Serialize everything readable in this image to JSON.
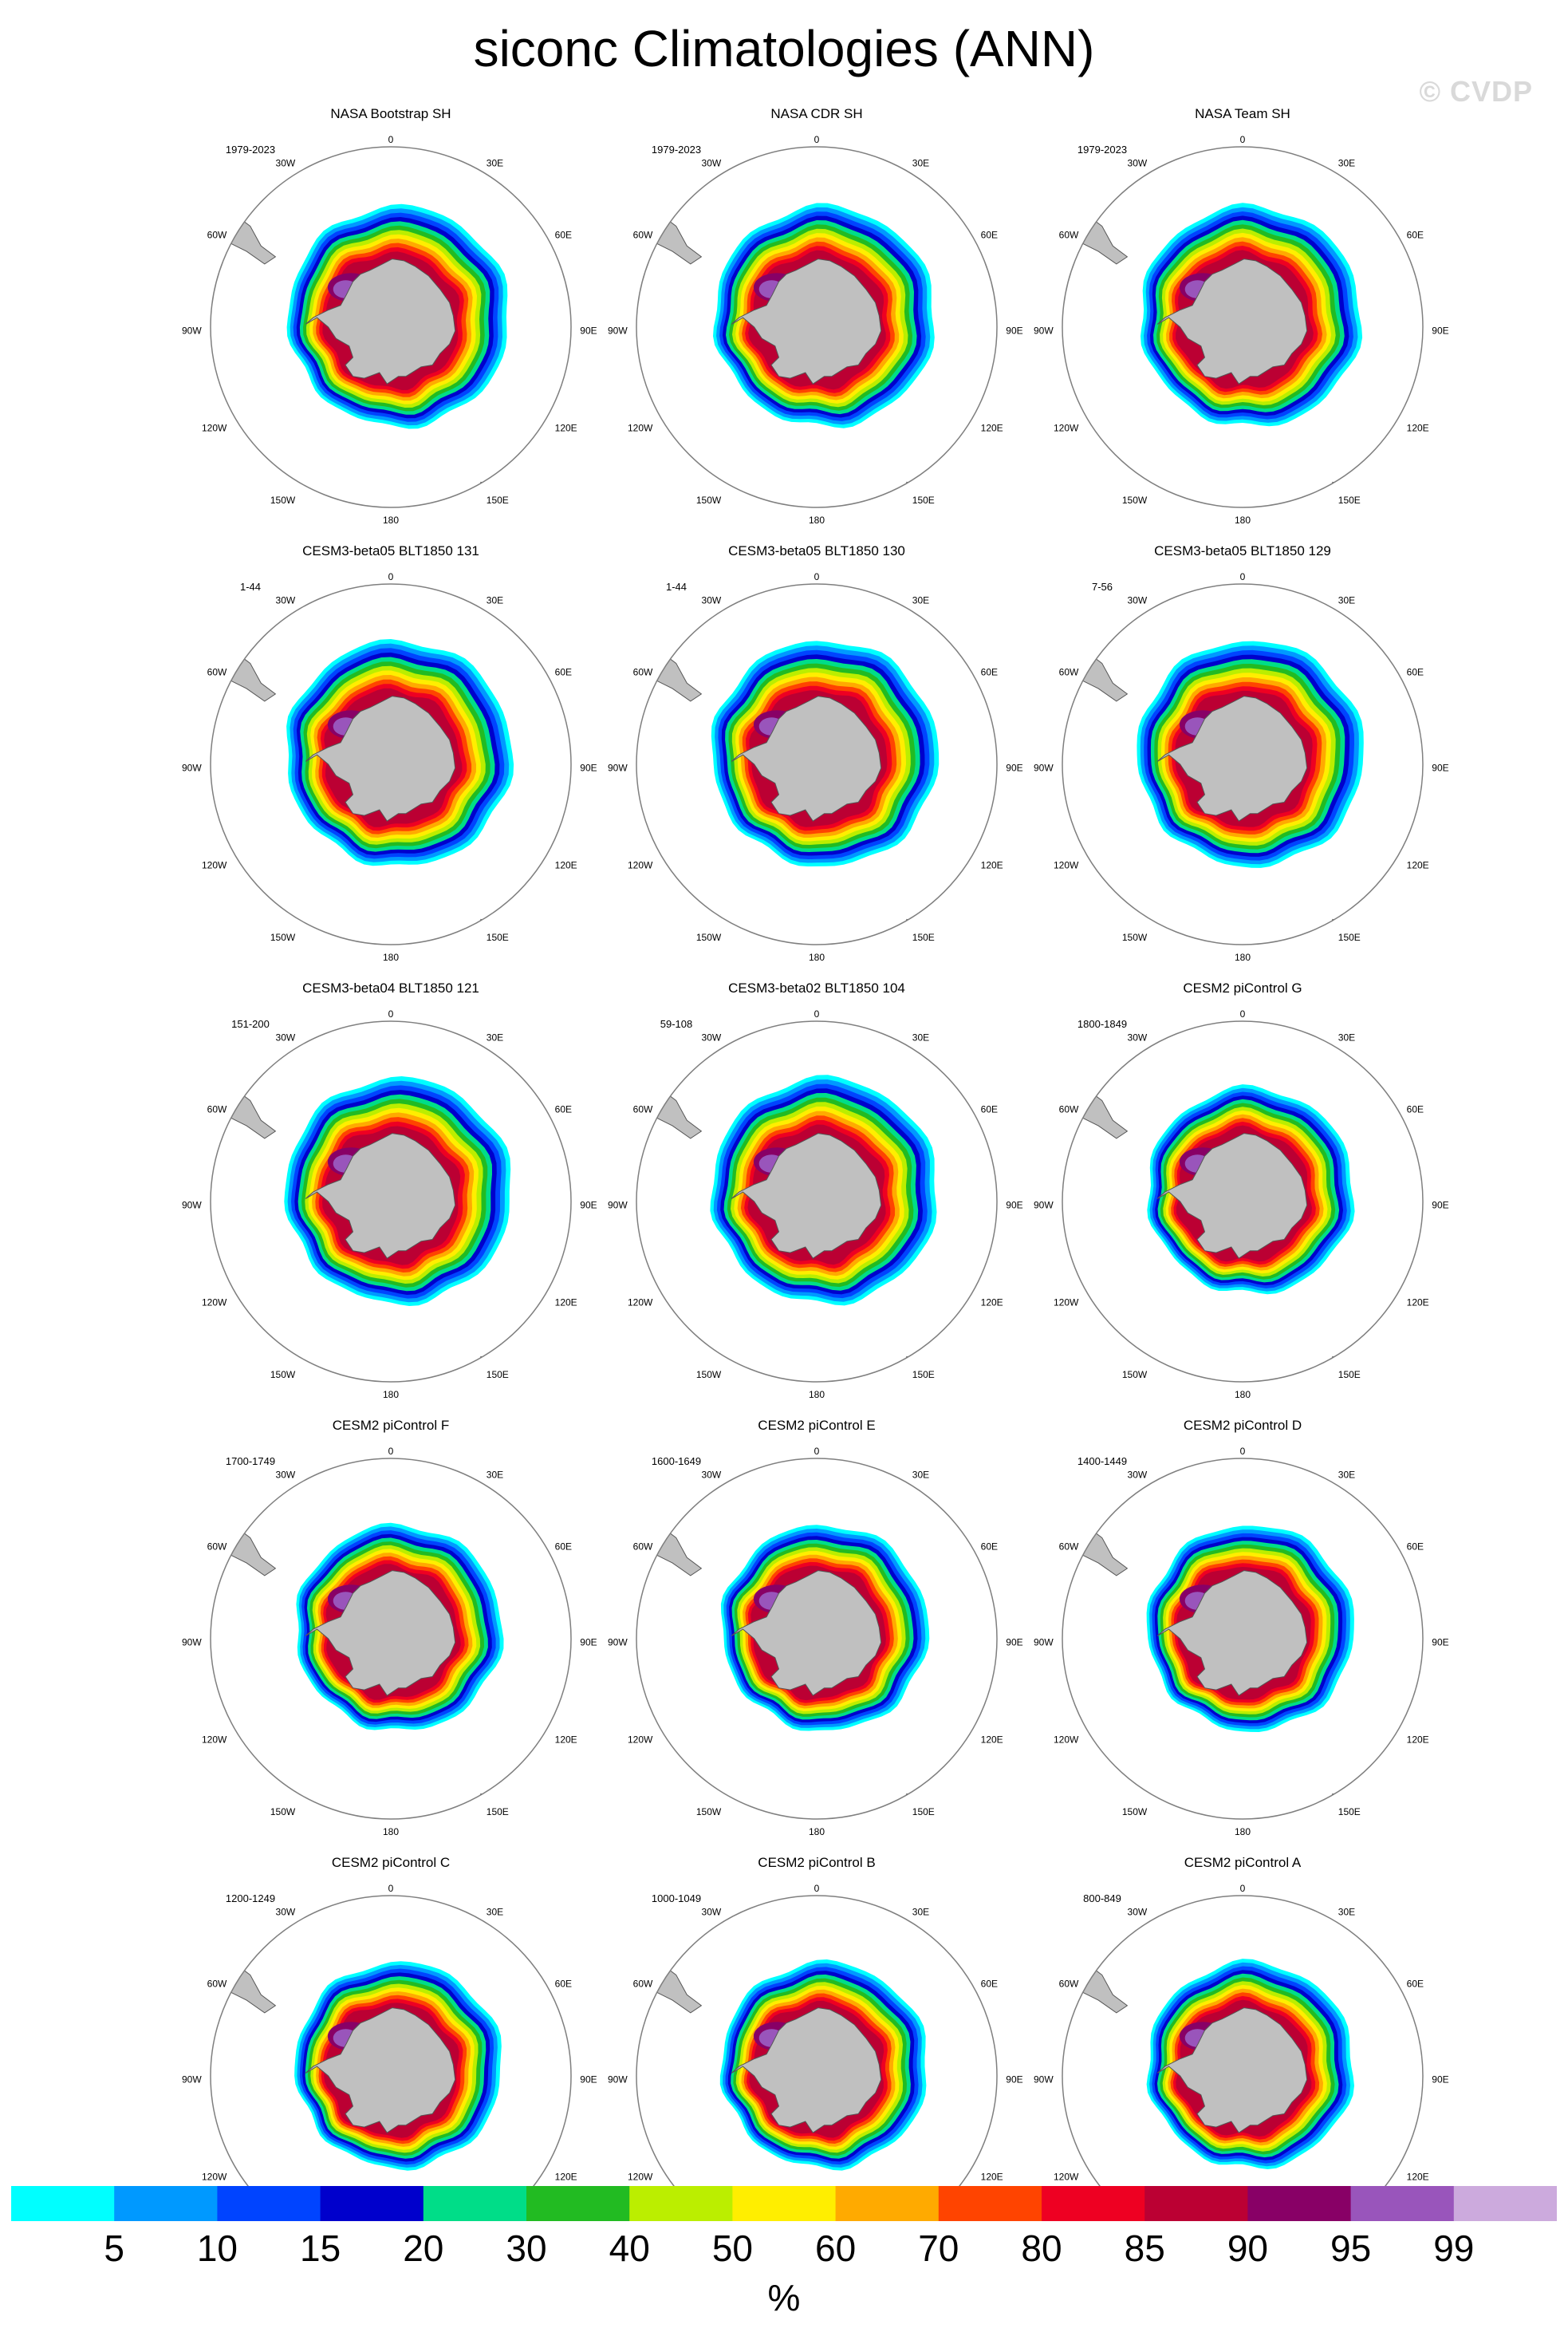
{
  "title": "siconc Climatologies (ANN)",
  "watermark": "© CVDP",
  "map_labels": {
    "top": "0",
    "bottom": "180",
    "left": "90W",
    "right": "90E",
    "upper_left": "30W",
    "upper_right": "30E",
    "mid_upper_left": "60W",
    "mid_upper_right": "60E",
    "mid_lower_left": "120W",
    "mid_lower_right": "120E",
    "lower_left": "150W",
    "lower_right": "150E"
  },
  "panels": [
    {
      "title": "NASA Bootstrap SH",
      "years": "1979-2023",
      "style": "obs"
    },
    {
      "title": "NASA CDR SH",
      "years": "1979-2023",
      "style": "obs"
    },
    {
      "title": "NASA Team SH",
      "years": "1979-2023",
      "style": "obs"
    },
    {
      "title": "CESM3-beta05 BLT1850 131",
      "years": "1-44",
      "style": "cesm3"
    },
    {
      "title": "CESM3-beta05 BLT1850 130",
      "years": "1-44",
      "style": "cesm3"
    },
    {
      "title": "CESM3-beta05 BLT1850 129",
      "years": "7-56",
      "style": "cesm3"
    },
    {
      "title": "CESM3-beta04 BLT1850 121",
      "years": "151-200",
      "style": "cesm3"
    },
    {
      "title": "CESM3-beta02 BLT1850 104",
      "years": "59-108",
      "style": "cesm3"
    },
    {
      "title": "CESM2 piControl G",
      "years": "1800-1849",
      "style": "cesm2"
    },
    {
      "title": "CESM2 piControl F",
      "years": "1700-1749",
      "style": "cesm2"
    },
    {
      "title": "CESM2 piControl E",
      "years": "1600-1649",
      "style": "cesm2"
    },
    {
      "title": "CESM2 piControl D",
      "years": "1400-1449",
      "style": "cesm2"
    },
    {
      "title": "CESM2 piControl C",
      "years": "1200-1249",
      "style": "cesm2"
    },
    {
      "title": "CESM2 piControl B",
      "years": "1000-1049",
      "style": "cesm2"
    },
    {
      "title": "CESM2 piControl A",
      "years": "800-849",
      "style": "cesm2"
    }
  ],
  "colorbar": {
    "unit_label": "%",
    "tick_labels": [
      "5",
      "10",
      "15",
      "20",
      "30",
      "40",
      "50",
      "60",
      "70",
      "80",
      "85",
      "90",
      "95",
      "99"
    ],
    "colors": [
      "#00ffff",
      "#0099ff",
      "#0044ff",
      "#0000cc",
      "#00dd88",
      "#22bb22",
      "#bbee00",
      "#ffee00",
      "#ffaa00",
      "#ff4400",
      "#ee0022",
      "#bb0033",
      "#880066",
      "#9955bb",
      "#ccaadd"
    ]
  },
  "colors": {
    "land": "#c0c0c0",
    "coast": "#555555",
    "circle": "#7f7f7f"
  }
}
